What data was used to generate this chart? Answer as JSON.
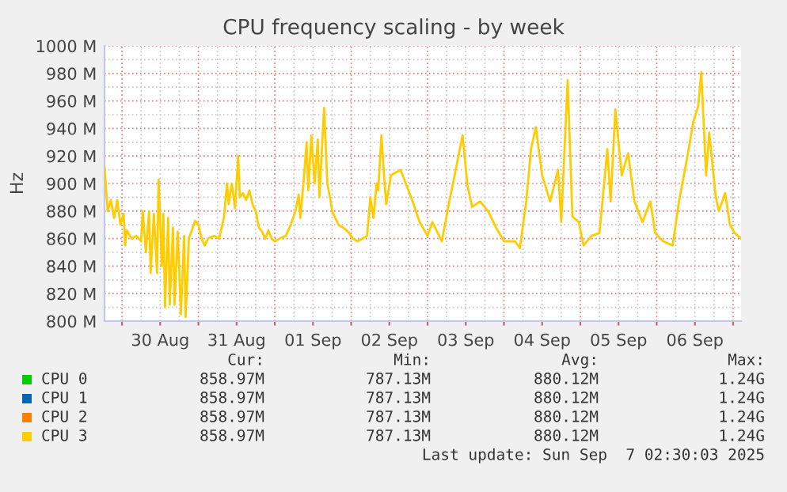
{
  "chart_data": {
    "type": "line",
    "title": "CPU frequency scaling - by week",
    "ylabel": "Hz",
    "x": [
      "2025-08-29T18:30",
      "2025-08-29T19:30",
      "2025-08-29T20:30",
      "2025-08-29T21:30",
      "2025-08-29T22:30",
      "2025-08-29T23:30",
      "2025-08-30T00:30",
      "2025-08-30T01:00",
      "2025-08-30T01:30",
      "2025-08-30T03:00",
      "2025-08-30T04:30",
      "2025-08-30T06:00",
      "2025-08-30T06:30",
      "2025-08-30T07:30",
      "2025-08-30T08:30",
      "2025-08-30T09:00",
      "2025-08-30T10:00",
      "2025-08-30T11:00",
      "2025-08-30T11:30",
      "2025-08-30T12:30",
      "2025-08-30T13:00",
      "2025-08-30T13:30",
      "2025-08-30T14:30",
      "2025-08-30T15:00",
      "2025-08-30T16:00",
      "2025-08-30T16:30",
      "2025-08-30T17:30",
      "2025-08-30T18:30",
      "2025-08-30T19:30",
      "2025-08-30T20:00",
      "2025-08-30T21:00",
      "2025-08-30T23:00",
      "2025-08-31T00:00",
      "2025-08-31T01:00",
      "2025-08-31T02:00",
      "2025-08-31T03:00",
      "2025-08-31T05:00",
      "2025-08-31T06:30",
      "2025-08-31T08:00",
      "2025-08-31T09:00",
      "2025-08-31T09:30",
      "2025-08-31T10:30",
      "2025-08-31T11:30",
      "2025-08-31T12:30",
      "2025-08-31T13:00",
      "2025-08-31T14:00",
      "2025-08-31T15:00",
      "2025-08-31T16:00",
      "2025-08-31T17:00",
      "2025-08-31T18:00",
      "2025-08-31T19:00",
      "2025-08-31T20:00",
      "2025-08-31T21:00",
      "2025-08-31T22:00",
      "2025-08-31T23:00",
      "2025-09-01T00:00",
      "2025-09-01T01:30",
      "2025-09-01T03:30",
      "2025-09-01T05:00",
      "2025-09-01T06:30",
      "2025-09-01T07:30",
      "2025-09-01T08:00",
      "2025-09-01T09:00",
      "2025-09-01T10:00",
      "2025-09-01T10:30",
      "2025-09-01T11:30",
      "2025-09-01T12:30",
      "2025-09-01T13:30",
      "2025-09-01T14:00",
      "2025-09-01T15:30",
      "2025-09-01T16:30",
      "2025-09-01T17:30",
      "2025-09-01T18:00",
      "2025-09-01T19:00",
      "2025-09-01T20:00",
      "2025-09-01T21:30",
      "2025-09-01T23:00",
      "2025-09-02T00:30",
      "2025-09-02T02:00",
      "2025-09-02T03:30",
      "2025-09-02T05:00",
      "2025-09-02T06:00",
      "2025-09-02T07:00",
      "2025-09-02T08:00",
      "2025-09-02T08:30",
      "2025-09-02T09:30",
      "2025-09-02T10:30",
      "2025-09-02T11:00",
      "2025-09-02T12:30",
      "2025-09-02T15:30",
      "2025-09-02T19:00",
      "2025-09-02T21:30",
      "2025-09-03T00:00",
      "2025-09-03T01:30",
      "2025-09-03T04:30",
      "2025-09-03T06:30",
      "2025-09-03T08:30",
      "2025-09-03T11:00",
      "2025-09-03T12:30",
      "2025-09-03T14:00",
      "2025-09-03T16:30",
      "2025-09-03T19:00",
      "2025-09-03T21:30",
      "2025-09-04T00:00",
      "2025-09-04T03:30",
      "2025-09-04T05:00",
      "2025-09-04T07:00",
      "2025-09-04T08:30",
      "2025-09-04T10:00",
      "2025-09-04T12:00",
      "2025-09-04T14:30",
      "2025-09-04T17:00",
      "2025-09-04T18:00",
      "2025-09-04T20:00",
      "2025-09-04T21:30",
      "2025-09-04T23:30",
      "2025-09-05T01:00",
      "2025-09-05T03:30",
      "2025-09-05T06:00",
      "2025-09-05T08:30",
      "2025-09-05T09:30",
      "2025-09-05T11:00",
      "2025-09-05T13:00",
      "2025-09-05T15:00",
      "2025-09-05T17:00",
      "2025-09-05T19:30",
      "2025-09-05T22:00",
      "2025-09-05T23:30",
      "2025-09-06T02:00",
      "2025-09-06T05:00",
      "2025-09-06T07:00",
      "2025-09-06T09:30",
      "2025-09-06T11:30",
      "2025-09-06T13:00",
      "2025-09-06T14:00",
      "2025-09-06T15:30",
      "2025-09-06T16:30",
      "2025-09-06T18:30",
      "2025-09-06T19:30",
      "2025-09-06T21:30",
      "2025-09-06T23:00",
      "2025-09-07T00:30",
      "2025-09-07T02:30"
    ],
    "series": [
      {
        "name": "CPU 0",
        "color": "#00cc00",
        "values": [
          null,
          null,
          null,
          null,
          null,
          null,
          null,
          null,
          null,
          null,
          null,
          null,
          null,
          null,
          null,
          null,
          null,
          null,
          null,
          null,
          null,
          null,
          null,
          null,
          null,
          null,
          null,
          null,
          null,
          null,
          null,
          null,
          null,
          null,
          null,
          null,
          null,
          null,
          null,
          null,
          null,
          null,
          null,
          null,
          null,
          null,
          null,
          null,
          null,
          null,
          null,
          null,
          null,
          null,
          null,
          null,
          null,
          null,
          null,
          null,
          null,
          null,
          null,
          null,
          null,
          null,
          null,
          null,
          null,
          null,
          null,
          null,
          null,
          null,
          null,
          null,
          null,
          null,
          null,
          null,
          null,
          null,
          null,
          null,
          null,
          null,
          null,
          null,
          null,
          null,
          null,
          null,
          null,
          null,
          null,
          null,
          null,
          null,
          null,
          null,
          null,
          null,
          null,
          null,
          null,
          null,
          null,
          null,
          null,
          null,
          null,
          null,
          null,
          null,
          null,
          null,
          null,
          null,
          null,
          null,
          null,
          null,
          null,
          null,
          null,
          null,
          null,
          null,
          null,
          null,
          null,
          null,
          null,
          null,
          null,
          null,
          null,
          null,
          null,
          null,
          null,
          null,
          null
        ]
      },
      {
        "name": "CPU 1",
        "color": "#0066b3",
        "values": [
          null,
          null,
          null,
          null,
          null,
          null,
          null,
          null,
          null,
          null,
          null,
          null,
          null,
          null,
          null,
          null,
          null,
          null,
          null,
          null,
          null,
          null,
          null,
          null,
          null,
          null,
          null,
          null,
          null,
          null,
          null,
          null,
          null,
          null,
          null,
          null,
          null,
          null,
          null,
          null,
          null,
          null,
          null,
          null,
          null,
          null,
          null,
          null,
          null,
          null,
          null,
          null,
          null,
          null,
          null,
          null,
          null,
          null,
          null,
          null,
          null,
          null,
          null,
          null,
          null,
          null,
          null,
          null,
          null,
          null,
          null,
          null,
          null,
          null,
          null,
          null,
          null,
          null,
          null,
          null,
          null,
          null,
          null,
          null,
          null,
          null,
          null,
          null,
          null,
          null,
          null,
          null,
          null,
          null,
          null,
          null,
          null,
          null,
          null,
          null,
          null,
          null,
          null,
          null,
          null,
          null,
          null,
          null,
          null,
          null,
          null,
          null,
          null,
          null,
          null,
          null,
          null,
          null,
          null,
          null,
          null,
          null,
          null,
          null,
          null,
          null,
          null,
          null,
          null,
          null,
          null,
          null,
          null,
          null,
          null,
          null,
          null,
          null,
          null,
          null,
          null,
          null,
          null
        ]
      },
      {
        "name": "CPU 2",
        "color": "#ff8000",
        "values": [
          null,
          null,
          null,
          null,
          null,
          null,
          null,
          null,
          null,
          null,
          null,
          null,
          null,
          null,
          null,
          null,
          null,
          null,
          null,
          null,
          null,
          null,
          null,
          null,
          null,
          null,
          null,
          null,
          null,
          null,
          null,
          null,
          null,
          null,
          null,
          null,
          null,
          null,
          null,
          null,
          null,
          null,
          null,
          null,
          null,
          null,
          null,
          null,
          null,
          null,
          null,
          null,
          null,
          null,
          null,
          null,
          null,
          null,
          null,
          null,
          null,
          null,
          null,
          null,
          null,
          null,
          null,
          null,
          null,
          null,
          null,
          null,
          null,
          null,
          null,
          null,
          null,
          null,
          null,
          null,
          null,
          null,
          null,
          null,
          null,
          null,
          null,
          null,
          null,
          null,
          null,
          null,
          null,
          null,
          null,
          null,
          null,
          null,
          null,
          null,
          null,
          null,
          null,
          null,
          null,
          null,
          null,
          null,
          null,
          null,
          null,
          null,
          null,
          null,
          null,
          null,
          null,
          null,
          null,
          null,
          null,
          null,
          null,
          null,
          null,
          null,
          null,
          null,
          null,
          null,
          null,
          null,
          null,
          null,
          null,
          null,
          null,
          null,
          null,
          null,
          null,
          null,
          null
        ]
      },
      {
        "name": "CPU 3",
        "color": "#ffcc00",
        "values": [
          912,
          880,
          888,
          875,
          888,
          870,
          878,
          855,
          866,
          860,
          862,
          858,
          880,
          850,
          880,
          835,
          878,
          835,
          903,
          840,
          878,
          810,
          875,
          812,
          868,
          812,
          865,
          805,
          862,
          803,
          860,
          873,
          870,
          860,
          855,
          860,
          862,
          860,
          875,
          900,
          885,
          900,
          882,
          920,
          890,
          893,
          888,
          895,
          885,
          880,
          868,
          865,
          860,
          866,
          860,
          858,
          860,
          862,
          870,
          880,
          892,
          875,
          900,
          930,
          895,
          935,
          900,
          932,
          890,
          955,
          900,
          888,
          880,
          875,
          870,
          868,
          865,
          860,
          858,
          860,
          862,
          890,
          875,
          900,
          895,
          935,
          900,
          885,
          906,
          910,
          889,
          872,
          862,
          872,
          858,
          883,
          906,
          935,
          899,
          883,
          887,
          880,
          868,
          858,
          858,
          853,
          887,
          925,
          941,
          906,
          887,
          910,
          872,
          975,
          876,
          872,
          855,
          862,
          864,
          925,
          887,
          954,
          906,
          922,
          887,
          872,
          887,
          864,
          858,
          855,
          887,
          918,
          945,
          956,
          981,
          906,
          937,
          891,
          880,
          893,
          870,
          864,
          860
        ]
      }
    ],
    "xlim": [
      "2025-08-29T18:30",
      "2025-09-07T02:30"
    ],
    "xticks": [
      {
        "value": "2025-08-30T00:00",
        "label": null
      },
      {
        "value": "2025-08-30T12:00",
        "label": "30 Aug"
      },
      {
        "value": "2025-08-31T00:00",
        "label": null
      },
      {
        "value": "2025-08-31T12:00",
        "label": "31 Aug"
      },
      {
        "value": "2025-09-01T00:00",
        "label": null
      },
      {
        "value": "2025-09-01T12:00",
        "label": "01 Sep"
      },
      {
        "value": "2025-09-02T00:00",
        "label": null
      },
      {
        "value": "2025-09-02T12:00",
        "label": "02 Sep"
      },
      {
        "value": "2025-09-03T00:00",
        "label": null
      },
      {
        "value": "2025-09-03T12:00",
        "label": "03 Sep"
      },
      {
        "value": "2025-09-04T00:00",
        "label": null
      },
      {
        "value": "2025-09-04T12:00",
        "label": "04 Sep"
      },
      {
        "value": "2025-09-05T00:00",
        "label": null
      },
      {
        "value": "2025-09-05T12:00",
        "label": "05 Sep"
      },
      {
        "value": "2025-09-06T00:00",
        "label": null
      },
      {
        "value": "2025-09-06T12:00",
        "label": "06 Sep"
      },
      {
        "value": "2025-09-07T00:00",
        "label": null
      }
    ],
    "ylim": [
      800,
      1000
    ],
    "yticks": [
      {
        "value": 800,
        "label": "800 M"
      },
      {
        "value": 820,
        "label": "820 M"
      },
      {
        "value": 840,
        "label": "840 M"
      },
      {
        "value": 860,
        "label": "860 M"
      },
      {
        "value": 880,
        "label": "880 M"
      },
      {
        "value": 900,
        "label": "900 M"
      },
      {
        "value": 920,
        "label": "920 M"
      },
      {
        "value": 940,
        "label": "940 M"
      },
      {
        "value": 960,
        "label": "960 M"
      },
      {
        "value": 980,
        "label": "980 M"
      },
      {
        "value": 1000,
        "label": "1000 M"
      }
    ],
    "grid": true,
    "legend": "bottom",
    "marker": "none",
    "line_style": "solid",
    "annotations": [
      "Cur:",
      "Min:",
      "Avg:",
      "Max:",
      "858.97M",
      "787.13M",
      "880.12M",
      "1.24G",
      "858.97M",
      "787.13M",
      "880.12M",
      "1.24G",
      "858.97M",
      "787.13M",
      "880.12M",
      "1.24G",
      "858.97M",
      "787.13M",
      "880.12M",
      "1.24G",
      "Last update: Sun Sep  7 02:30:03 2025"
    ]
  }
}
